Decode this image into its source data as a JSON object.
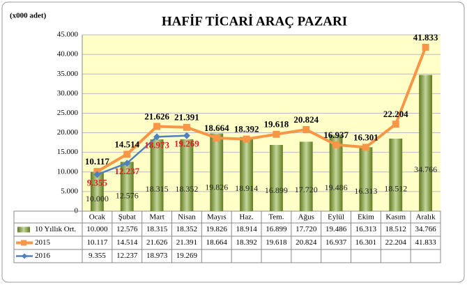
{
  "chart_data": {
    "type": "bar-line",
    "title": "HAFİF TİCARİ ARAÇ PAZARI",
    "unit_label": "(x000 adet)",
    "categories": [
      "Ocak",
      "Şubat",
      "Mart",
      "Nisan",
      "Mayıs",
      "Haz.",
      "Tem.",
      "Ağus",
      "Eylül",
      "Ekim",
      "Kasım",
      "Aralık"
    ],
    "ylim": [
      0,
      45000
    ],
    "yticks": [
      {
        "value": 0,
        "label": "0"
      },
      {
        "value": 5000,
        "label": "5.000"
      },
      {
        "value": 10000,
        "label": "10.000"
      },
      {
        "value": 15000,
        "label": "15.000"
      },
      {
        "value": 20000,
        "label": "20.000"
      },
      {
        "value": 25000,
        "label": "25.000"
      },
      {
        "value": 30000,
        "label": "30.000"
      },
      {
        "value": 35000,
        "label": "35.000"
      },
      {
        "value": 40000,
        "label": "40.000"
      },
      {
        "value": 45000,
        "label": "45.000"
      }
    ],
    "grid": true,
    "series": [
      {
        "name": "10 Yıllık Ort.",
        "type": "bar",
        "color": "#8faa3c",
        "values": [
          10000,
          12576,
          18315,
          18352,
          19826,
          18914,
          16899,
          17720,
          19486,
          16313,
          18512,
          34766
        ],
        "value_labels": [
          "10.000",
          "12.576",
          "18.315",
          "18.352",
          "19.826",
          "18.914",
          "16.899",
          "17.720",
          "19.486",
          "16.313",
          "18.512",
          "34.766"
        ]
      },
      {
        "name": "2015",
        "type": "line",
        "color": "#f79646",
        "values": [
          10117,
          14514,
          21626,
          21391,
          18664,
          18392,
          19618,
          20824,
          16937,
          16301,
          22204,
          41833
        ],
        "value_labels": [
          "10.117",
          "14.514",
          "21.626",
          "21.391",
          "18.664",
          "18.392",
          "19.618",
          "20.824",
          "16.937",
          "16.301",
          "22.204",
          "41.833"
        ]
      },
      {
        "name": "2016",
        "type": "line",
        "color": "#4f81bd",
        "values": [
          9355,
          12237,
          18973,
          19269,
          null,
          null,
          null,
          null,
          null,
          null,
          null,
          null
        ],
        "value_labels": [
          "9.355",
          "12.237",
          "18.973",
          "19.269",
          null,
          null,
          null,
          null,
          null,
          null,
          null,
          null
        ]
      }
    ]
  }
}
